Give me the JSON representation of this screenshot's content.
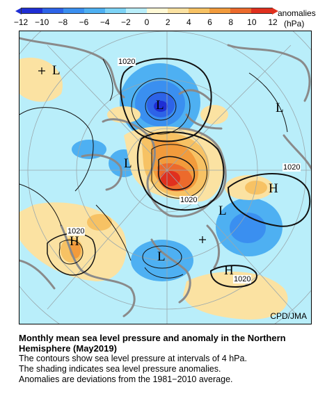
{
  "colorbar": {
    "title": "anomalies",
    "unit": "(hPa)",
    "ticks": [
      "−12",
      "−10",
      "−8",
      "−6",
      "−4",
      "−2",
      "0",
      "2",
      "4",
      "6",
      "8",
      "10",
      "12"
    ],
    "colors": [
      "#1f2ed4",
      "#2d63e8",
      "#3a8ff0",
      "#4eb0f2",
      "#7dd3f6",
      "#b9eefa",
      "#fff9d6",
      "#fbe2a2",
      "#f7c264",
      "#f29b3c",
      "#ec6a2c",
      "#e0301e"
    ]
  },
  "map": {
    "contour_labels": [
      "1020",
      "1020",
      "1020",
      "1020",
      "1020"
    ],
    "pressure_markers": [
      "L",
      "L",
      "L",
      "L",
      "L",
      "L",
      "H",
      "H",
      "H"
    ],
    "credit": "CPD/JMA"
  },
  "caption": {
    "title_line1": "Monthly mean sea level pressure and anomaly in the Northern",
    "title_line2": "Hemisphere (May2019)",
    "line1": "The contours show sea level pressure at intervals of 4 hPa.",
    "line2": "The shading indicates sea level pressure anomalies.",
    "line3": "Anomalies are deviations from the 1981−2010 average."
  }
}
